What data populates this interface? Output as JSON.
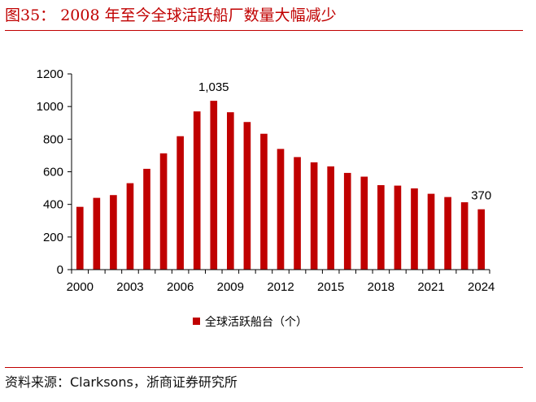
{
  "figure": {
    "title": "图35：  2008 年至今全球活跃船厂数量大幅减少",
    "source": "资料来源：Clarksons，浙商证券研究所"
  },
  "colors": {
    "accent": "#c00000",
    "bar": "#c00000",
    "axis": "#000000"
  },
  "chart_data": {
    "type": "bar",
    "title": "",
    "xlabel": "",
    "ylabel": "",
    "ylim": [
      0,
      1200
    ],
    "yticks": [
      0,
      200,
      400,
      600,
      800,
      1000,
      1200
    ],
    "x": [
      2000,
      2001,
      2002,
      2003,
      2004,
      2005,
      2006,
      2007,
      2008,
      2009,
      2010,
      2011,
      2012,
      2013,
      2014,
      2015,
      2016,
      2017,
      2018,
      2019,
      2020,
      2021,
      2022,
      2023,
      2024
    ],
    "xtick_labels": [
      "2000",
      "2003",
      "2006",
      "2009",
      "2012",
      "2015",
      "2018",
      "2021",
      "2024"
    ],
    "series": [
      {
        "name": "全球活跃船台（个）",
        "values": [
          385,
          440,
          457,
          530,
          618,
          713,
          818,
          970,
          1035,
          965,
          905,
          833,
          740,
          690,
          658,
          633,
          593,
          570,
          518,
          515,
          498,
          465,
          445,
          413,
          370
        ]
      }
    ],
    "data_labels": [
      {
        "x": 2008,
        "text": "1,035"
      },
      {
        "x": 2024,
        "text": "370"
      }
    ],
    "legend": {
      "position": "bottom",
      "entries": [
        "全球活跃船台（个）"
      ]
    },
    "grid": false
  }
}
